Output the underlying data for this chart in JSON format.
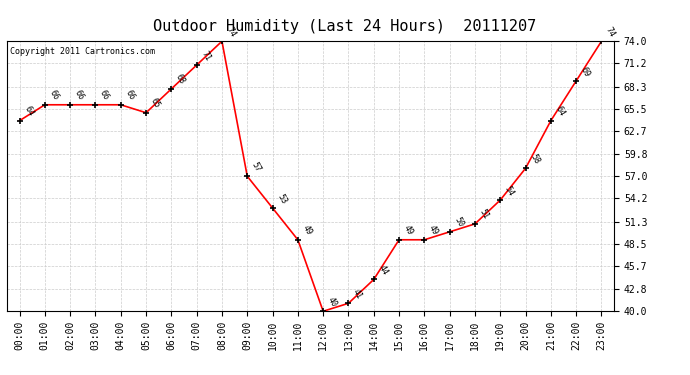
{
  "title": "Outdoor Humidity (Last 24 Hours)  20111207",
  "copyright": "Copyright 2011 Cartronics.com",
  "hours": [
    "00:00",
    "01:00",
    "02:00",
    "03:00",
    "04:00",
    "05:00",
    "06:00",
    "07:00",
    "08:00",
    "09:00",
    "10:00",
    "11:00",
    "12:00",
    "13:00",
    "14:00",
    "15:00",
    "16:00",
    "17:00",
    "18:00",
    "19:00",
    "20:00",
    "21:00",
    "22:00",
    "23:00"
  ],
  "values": [
    64,
    66,
    66,
    66,
    66,
    65,
    68,
    71,
    74,
    57,
    53,
    49,
    40,
    41,
    44,
    49,
    49,
    50,
    51,
    54,
    58,
    64,
    69,
    74
  ],
  "line_color": "#ff0000",
  "marker_color": "#000000",
  "bg_color": "#ffffff",
  "grid_color": "#cccccc",
  "ylim": [
    40.0,
    74.0
  ],
  "yticks": [
    40.0,
    42.8,
    45.7,
    48.5,
    51.3,
    54.2,
    57.0,
    59.8,
    62.7,
    65.5,
    68.3,
    71.2,
    74.0
  ],
  "title_fontsize": 11,
  "label_fontsize": 6,
  "tick_fontsize": 7,
  "copyright_fontsize": 6
}
